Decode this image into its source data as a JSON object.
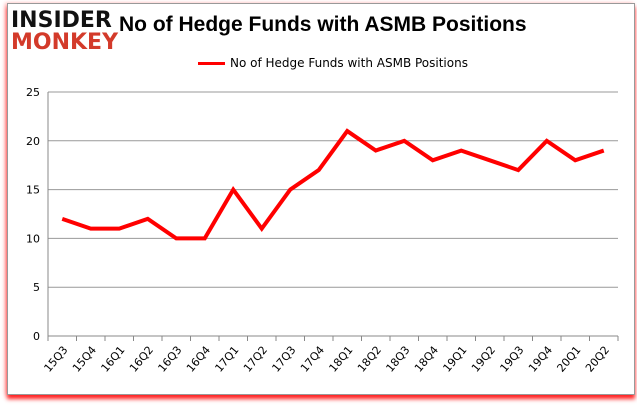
{
  "logo": {
    "line1": "INSIDER",
    "line2": "MONKEY"
  },
  "chart_data": {
    "type": "line",
    "title": "No of Hedge Funds with ASMB Positions",
    "xlabel": "",
    "ylabel": "",
    "categories": [
      "15Q3",
      "15Q4",
      "16Q1",
      "16Q2",
      "16Q3",
      "16Q4",
      "17Q1",
      "17Q2",
      "17Q3",
      "17Q4",
      "18Q1",
      "18Q2",
      "18Q3",
      "18Q4",
      "19Q1",
      "19Q2",
      "19Q3",
      "19Q4",
      "20Q1",
      "20Q2"
    ],
    "series": [
      {
        "name": "No of Hedge Funds with ASMB Positions",
        "color": "#ff0000",
        "values": [
          12,
          11,
          11,
          12,
          10,
          10,
          15,
          11,
          15,
          17,
          21,
          19,
          20,
          18,
          19,
          18,
          17,
          20,
          18,
          19
        ]
      }
    ],
    "ylim": [
      0,
      25
    ],
    "yticks": [
      0,
      5,
      10,
      15,
      20,
      25
    ],
    "grid": true,
    "legend": "top"
  }
}
